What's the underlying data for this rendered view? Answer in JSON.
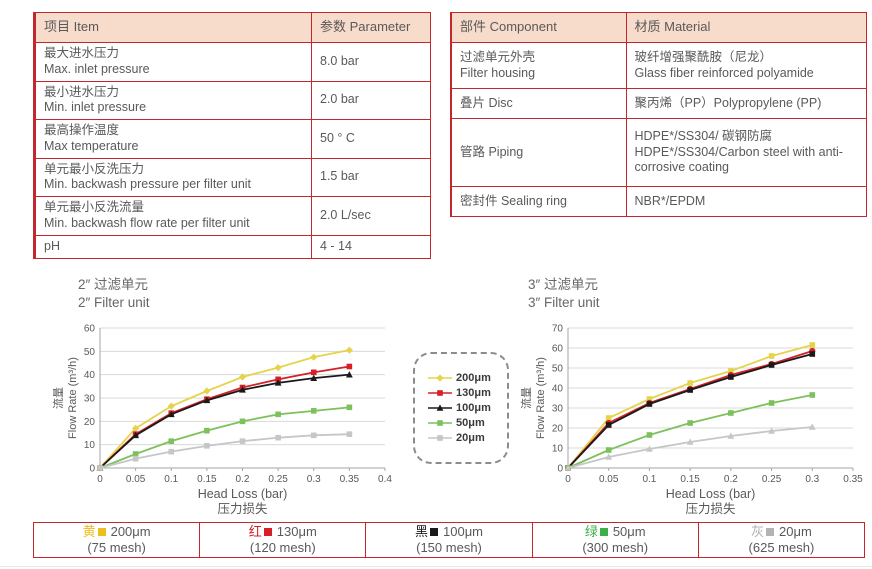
{
  "spec_table": {
    "header": {
      "item": "项目 Item",
      "param": "参数 Parameter"
    },
    "rows": [
      {
        "zh": "最大进水压力",
        "en": "Max. inlet pressure",
        "value": "8.0 bar"
      },
      {
        "zh": "最小进水压力",
        "en": "Min. inlet pressure",
        "value": "2.0 bar"
      },
      {
        "zh": "最高操作温度",
        "en": "Max temperature",
        "value": "50 ° C"
      },
      {
        "zh": "单元最小反洗压力",
        "en": "Min. backwash pressure per filter unit",
        "value": "1.5 bar"
      },
      {
        "zh": "单元最小反洗流量",
        "en": "Min. backwash flow rate per filter unit",
        "value": "2.0 L/sec"
      },
      {
        "zh": "pH",
        "en": "",
        "value": "4 - 14"
      }
    ]
  },
  "material_table": {
    "header": {
      "component": "部件 Component",
      "material": "材质 Material"
    },
    "rows": [
      {
        "part_zh": "过滤单元外壳",
        "part_en": "Filter housing",
        "mat_zh": "玻纤增强聚酰胺（尼龙）",
        "mat_en": "Glass fiber reinforced polyamide"
      },
      {
        "part_zh": "叠片 Disc",
        "part_en": "",
        "mat_zh": "聚丙烯（PP）Polypropylene (PP)",
        "mat_en": ""
      },
      {
        "part_zh": "管路 Piping",
        "part_en": "",
        "mat_zh": "HDPE*/SS304/ 碳钢防腐",
        "mat_en": "HDPE*/SS304/Carbon steel with anti-corrosive coating"
      },
      {
        "part_zh": "密封件 Sealing ring",
        "part_en": "",
        "mat_zh": "NBR*/EPDM",
        "mat_en": ""
      }
    ]
  },
  "chart_data": [
    {
      "type": "line",
      "title_zh": "2″ 过滤单元",
      "title_en": "2″ Filter unit",
      "xlabel": "Head Loss (bar)",
      "xlabel_zh": "压力损失",
      "ylabel_zh": "流量",
      "ylabel": "Flow Rate (m³/h)",
      "xlim": [
        0,
        0.4
      ],
      "ylim": [
        0,
        60
      ],
      "xstep": 0.05,
      "ystep": 10,
      "grid": "horizontal",
      "x": [
        0,
        0.05,
        0.1,
        0.15,
        0.2,
        0.25,
        0.3,
        0.35
      ],
      "series": [
        {
          "name": "200μm",
          "color": "#e5d44a",
          "marker": "diamond",
          "values": [
            0,
            17,
            26.5,
            33,
            39,
            43,
            47.5,
            50.5
          ]
        },
        {
          "name": "130μm",
          "color": "#d42026",
          "marker": "square",
          "values": [
            0,
            14.5,
            23.5,
            29.5,
            34.5,
            38,
            41,
            43.5
          ]
        },
        {
          "name": "100μm",
          "color": "#1a1a1a",
          "marker": "triangle",
          "values": [
            0,
            14,
            23,
            29,
            33.5,
            36.5,
            38.5,
            40
          ]
        },
        {
          "name": "50μm",
          "color": "#7cc15c",
          "marker": "square",
          "values": [
            0,
            6,
            11.5,
            16,
            20,
            23,
            24.5,
            26
          ]
        },
        {
          "name": "20μm",
          "color": "#c6c6c6",
          "marker": "square",
          "values": [
            0,
            4,
            7,
            9.5,
            11.5,
            13,
            14,
            14.5
          ]
        }
      ]
    },
    {
      "type": "line",
      "title_zh": "3″ 过滤单元",
      "title_en": "3″ Filter unit",
      "xlabel": "Head Loss (bar)",
      "xlabel_zh": "压力损失",
      "ylabel_zh": "流量",
      "ylabel": "Flow Rate (m³/h)",
      "xlim": [
        0,
        0.35
      ],
      "ylim": [
        0,
        70
      ],
      "xstep": 0.05,
      "ystep": 10,
      "grid": "horizontal",
      "x": [
        0,
        0.05,
        0.1,
        0.15,
        0.2,
        0.25,
        0.3
      ],
      "series": [
        {
          "name": "200μm",
          "color": "#e5d44a",
          "marker": "square",
          "values": [
            0,
            25,
            34.5,
            42.5,
            48.5,
            56,
            61.5
          ]
        },
        {
          "name": "130μm",
          "color": "#d42026",
          "marker": "circle",
          "values": [
            0,
            22.5,
            32.5,
            39.5,
            46.5,
            52,
            58.5
          ]
        },
        {
          "name": "100μm",
          "color": "#1a1a1a",
          "marker": "square",
          "values": [
            0,
            21.5,
            32,
            39,
            45.5,
            51.5,
            57
          ]
        },
        {
          "name": "50μm",
          "color": "#7cc15c",
          "marker": "square",
          "values": [
            0,
            9,
            16.5,
            22.5,
            27.5,
            32.5,
            36.5
          ]
        },
        {
          "name": "20μm",
          "color": "#c6c6c6",
          "marker": "triangle",
          "values": [
            0,
            5.5,
            9.5,
            13,
            16,
            18.5,
            20.5
          ]
        }
      ]
    }
  ],
  "legend_box": {
    "items": [
      {
        "label": "200μm",
        "color": "#e5d44a",
        "marker": "diamond"
      },
      {
        "label": "130μm",
        "color": "#d42026",
        "marker": "square"
      },
      {
        "label": "100μm",
        "color": "#1a1a1a",
        "marker": "triangle"
      },
      {
        "label": "50μm",
        "color": "#7cc15c",
        "marker": "square"
      },
      {
        "label": "20μm",
        "color": "#c6c6c6",
        "marker": "square"
      }
    ]
  },
  "bottom_legend": {
    "cells": [
      {
        "cn": "黄",
        "color": "#eebd20",
        "size": "200μm",
        "mesh": "(75 mesh)"
      },
      {
        "cn": "红",
        "color": "#d42026",
        "size": "130μm",
        "mesh": "(120 mesh)"
      },
      {
        "cn": "黑",
        "color": "#1a1a1a",
        "size": "100μm",
        "mesh": "(150 mesh)"
      },
      {
        "cn": "绿",
        "color": "#3fae49",
        "size": "50μm",
        "mesh": "(300 mesh)"
      },
      {
        "cn": "灰",
        "color": "#b3b3b3",
        "size": "20μm",
        "mesh": "(625 mesh)"
      }
    ]
  },
  "colors": {
    "table_border": "#c1272d",
    "header_bg": "#f7dbcb",
    "text": "#595959",
    "gridline": "#d9d9d9"
  }
}
